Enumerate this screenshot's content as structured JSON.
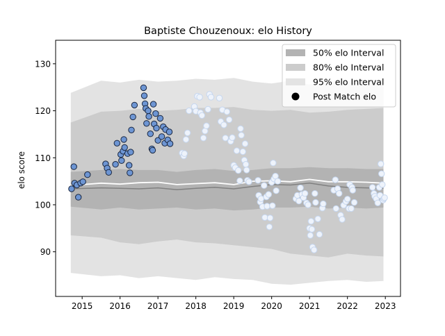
{
  "chart_data": {
    "type": "scatter",
    "title": "Baptiste Chouzenoux: elo History",
    "xlabel": "",
    "ylabel": "elo score",
    "xlim": [
      2014.3,
      2023.4
    ],
    "ylim": [
      80.5,
      135
    ],
    "x_ticks": [
      2015,
      2016,
      2017,
      2018,
      2019,
      2020,
      2021,
      2022,
      2023
    ],
    "y_ticks": [
      90,
      100,
      110,
      120,
      130
    ],
    "grid": false,
    "legend_position": "top-right",
    "legend": [
      {
        "label": "50% elo Interval",
        "kind": "band",
        "color": "#b3b3b3"
      },
      {
        "label": "80% elo Interval",
        "kind": "band",
        "color": "#cccccc"
      },
      {
        "label": "95% elo Interval",
        "kind": "band",
        "color": "#e3e3e3"
      },
      {
        "label": "Post Match elo",
        "kind": "marker",
        "color": "#000000"
      }
    ],
    "colors": {
      "band95": "#e3e3e3",
      "band80": "#cccccc",
      "band50": "#b3b3b3",
      "median_line": "#808080",
      "mean_line": "#ffffff",
      "point_early_fill": "#6d95d3",
      "point_early_edge": "#1a2740",
      "point_late_fill": "#eef3fb",
      "point_late_edge": "#c5d6ef"
    },
    "bands": {
      "x": [
        2014.7,
        2015.5,
        2016.0,
        2016.5,
        2017.0,
        2017.5,
        2018.0,
        2018.5,
        2019.0,
        2019.5,
        2020.0,
        2020.5,
        2021.0,
        2021.5,
        2022.0,
        2022.5,
        2022.95
      ],
      "median": [
        103.4,
        103.6,
        103.5,
        103.4,
        103.6,
        103.2,
        103.5,
        103.7,
        103.4,
        103.9,
        104.3,
        104.2,
        104.6,
        104.0,
        103.7,
        103.6,
        103.5
      ],
      "mean": [
        104.1,
        104.6,
        104.4,
        104.7,
        104.8,
        104.3,
        104.5,
        104.7,
        104.3,
        105.0,
        105.1,
        104.9,
        105.4,
        104.9,
        104.9,
        104.8,
        104.6
      ],
      "q50_low": [
        99.6,
        99.0,
        99.4,
        99.0,
        99.2,
        99.4,
        99.0,
        99.2,
        98.8,
        99.0,
        99.4,
        99.4,
        99.6,
        99.2,
        99.4,
        99.2,
        99.4
      ],
      "q50_high": [
        107.0,
        107.4,
        107.6,
        107.4,
        107.4,
        107.0,
        107.4,
        107.6,
        107.2,
        107.4,
        107.8,
        107.8,
        108.0,
        107.8,
        107.8,
        107.6,
        107.6
      ],
      "q80_low": [
        93.5,
        93.0,
        92.0,
        91.6,
        92.2,
        92.6,
        92.0,
        91.8,
        91.4,
        91.0,
        90.6,
        89.6,
        89.2,
        88.8,
        89.6,
        89.2,
        89.0
      ],
      "q80_high": [
        117.5,
        119.8,
        120.0,
        120.4,
        120.0,
        120.2,
        120.6,
        120.6,
        120.8,
        120.2,
        120.0,
        120.2,
        119.6,
        119.8,
        120.2,
        120.4,
        120.6
      ],
      "q95_low": [
        85.5,
        84.8,
        85.0,
        84.4,
        84.8,
        84.4,
        84.0,
        84.6,
        84.2,
        84.0,
        83.2,
        83.0,
        83.4,
        83.8,
        84.0,
        83.6,
        83.8
      ],
      "q95_high": [
        123.8,
        126.4,
        126.0,
        126.6,
        126.2,
        126.4,
        126.8,
        126.6,
        127.0,
        126.2,
        125.8,
        126.4,
        125.6,
        126.2,
        126.2,
        126.6,
        126.6
      ]
    },
    "series": [
      {
        "name": "Post Match elo",
        "points": [
          [
            2014.72,
            103.4
          ],
          [
            2014.78,
            108.1
          ],
          [
            2014.8,
            104.6
          ],
          [
            2014.86,
            104.2
          ],
          [
            2014.9,
            101.6
          ],
          [
            2014.96,
            104.6
          ],
          [
            2015.02,
            104.9
          ],
          [
            2015.14,
            106.4
          ],
          [
            2015.62,
            108.7
          ],
          [
            2015.66,
            107.8
          ],
          [
            2015.7,
            106.9
          ],
          [
            2015.88,
            108.6
          ],
          [
            2015.92,
            113.1
          ],
          [
            2016.02,
            110.7
          ],
          [
            2016.04,
            109.4
          ],
          [
            2016.08,
            111.4
          ],
          [
            2016.1,
            113.9
          ],
          [
            2016.12,
            112.2
          ],
          [
            2016.2,
            110.9
          ],
          [
            2016.24,
            108.4
          ],
          [
            2016.26,
            106.8
          ],
          [
            2016.28,
            111.2
          ],
          [
            2016.3,
            115.9
          ],
          [
            2016.34,
            118.7
          ],
          [
            2016.38,
            121.2
          ],
          [
            2016.62,
            124.9
          ],
          [
            2016.64,
            123.2
          ],
          [
            2016.66,
            121.5
          ],
          [
            2016.68,
            120.5
          ],
          [
            2016.7,
            117.3
          ],
          [
            2016.74,
            120.0
          ],
          [
            2016.76,
            118.8
          ],
          [
            2016.8,
            115.1
          ],
          [
            2016.84,
            111.9
          ],
          [
            2016.86,
            111.6
          ],
          [
            2016.88,
            121.4
          ],
          [
            2016.9,
            117.2
          ],
          [
            2016.94,
            119.4
          ],
          [
            2016.96,
            116.3
          ],
          [
            2017.0,
            113.7
          ],
          [
            2017.06,
            118.4
          ],
          [
            2017.1,
            114.5
          ],
          [
            2017.14,
            116.6
          ],
          [
            2017.18,
            113.1
          ],
          [
            2017.2,
            116.0
          ],
          [
            2017.26,
            113.8
          ],
          [
            2017.3,
            115.5
          ],
          [
            2017.32,
            113.0
          ]
        ]
      },
      {
        "name": "Post Match elo",
        "points": [
          [
            2017.64,
            111.0
          ],
          [
            2017.68,
            110.4
          ],
          [
            2017.7,
            110.9
          ],
          [
            2017.74,
            113.9
          ],
          [
            2017.78,
            115.3
          ],
          [
            2017.82,
            120.0
          ],
          [
            2017.96,
            120.9
          ],
          [
            2018.0,
            119.9
          ],
          [
            2018.04,
            123.1
          ],
          [
            2018.1,
            122.9
          ],
          [
            2018.12,
            119.6
          ],
          [
            2018.16,
            119.0
          ],
          [
            2018.2,
            114.2
          ],
          [
            2018.24,
            115.7
          ],
          [
            2018.28,
            116.8
          ],
          [
            2018.32,
            120.3
          ],
          [
            2018.36,
            123.5
          ],
          [
            2018.4,
            122.9
          ],
          [
            2018.62,
            122.7
          ],
          [
            2018.66,
            117.7
          ],
          [
            2018.7,
            120.2
          ],
          [
            2018.74,
            117.0
          ],
          [
            2018.78,
            114.2
          ],
          [
            2018.82,
            119.8
          ],
          [
            2018.88,
            118.1
          ],
          [
            2018.92,
            113.5
          ],
          [
            2018.96,
            114.3
          ],
          [
            2019.0,
            108.4
          ],
          [
            2019.04,
            107.9
          ],
          [
            2019.08,
            111.5
          ],
          [
            2019.12,
            107.3
          ],
          [
            2019.16,
            105.1
          ],
          [
            2019.18,
            116.2
          ],
          [
            2019.2,
            114.8
          ],
          [
            2019.24,
            111.3
          ],
          [
            2019.28,
            109.5
          ],
          [
            2019.3,
            113.0
          ],
          [
            2019.32,
            108.6
          ],
          [
            2019.34,
            107.4
          ],
          [
            2019.36,
            105.2
          ],
          [
            2019.4,
            104.9
          ],
          [
            2019.64,
            105.2
          ],
          [
            2019.66,
            102.0
          ],
          [
            2019.7,
            100.6
          ],
          [
            2019.72,
            101.3
          ],
          [
            2019.76,
            99.6
          ],
          [
            2019.8,
            104.1
          ],
          [
            2019.82,
            97.3
          ],
          [
            2019.86,
            101.7
          ],
          [
            2019.88,
            99.7
          ],
          [
            2019.92,
            102.2
          ],
          [
            2019.94,
            95.3
          ],
          [
            2019.96,
            97.2
          ],
          [
            2020.0,
            104.8
          ],
          [
            2020.02,
            99.8
          ],
          [
            2020.04,
            108.9
          ],
          [
            2020.06,
            105.5
          ],
          [
            2020.1,
            106.1
          ],
          [
            2020.12,
            103.0
          ],
          [
            2020.16,
            105.0
          ],
          [
            2020.64,
            101.3
          ],
          [
            2020.68,
            102.0
          ],
          [
            2020.72,
            100.8
          ],
          [
            2020.76,
            103.6
          ],
          [
            2020.8,
            102.2
          ],
          [
            2020.84,
            101.5
          ],
          [
            2020.88,
            102.4
          ],
          [
            2020.92,
            100.4
          ],
          [
            2020.96,
            100.0
          ],
          [
            2021.0,
            95.0
          ],
          [
            2021.02,
            93.5
          ],
          [
            2021.04,
            96.5
          ],
          [
            2021.06,
            94.8
          ],
          [
            2021.08,
            91.0
          ],
          [
            2021.12,
            90.4
          ],
          [
            2021.14,
            102.4
          ],
          [
            2021.16,
            100.5
          ],
          [
            2021.22,
            97.0
          ],
          [
            2021.26,
            93.7
          ],
          [
            2021.34,
            99.3
          ],
          [
            2021.36,
            100.2
          ],
          [
            2021.64,
            103.1
          ],
          [
            2021.68,
            105.3
          ],
          [
            2021.7,
            99.2
          ],
          [
            2021.74,
            103.4
          ],
          [
            2021.78,
            102.4
          ],
          [
            2021.82,
            97.8
          ],
          [
            2021.86,
            96.9
          ],
          [
            2021.9,
            99.9
          ],
          [
            2021.96,
            100.7
          ],
          [
            2022.0,
            101.2
          ],
          [
            2022.04,
            99.2
          ],
          [
            2022.06,
            104.3
          ],
          [
            2022.1,
            99.2
          ],
          [
            2022.12,
            103.7
          ],
          [
            2022.14,
            103.1
          ],
          [
            2022.18,
            100.5
          ],
          [
            2022.66,
            103.7
          ],
          [
            2022.7,
            102.4
          ],
          [
            2022.72,
            101.8
          ],
          [
            2022.76,
            101.3
          ],
          [
            2022.8,
            100.4
          ],
          [
            2022.84,
            103.7
          ],
          [
            2022.86,
            102.0
          ],
          [
            2022.88,
            108.7
          ],
          [
            2022.9,
            106.6
          ],
          [
            2022.92,
            104.3
          ],
          [
            2022.94,
            101.0
          ],
          [
            2022.96,
            101.3
          ],
          [
            2022.98,
            101.5
          ]
        ]
      }
    ]
  }
}
